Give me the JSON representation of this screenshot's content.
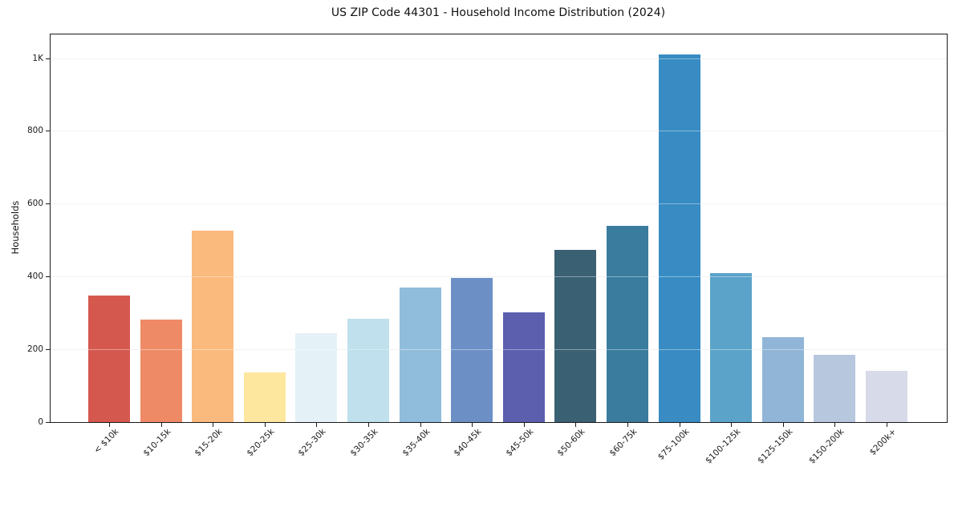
{
  "chart_data": {
    "type": "bar",
    "title": "US ZIP Code 44301 - Household Income Distribution (2024)",
    "xlabel": "",
    "ylabel": "Households",
    "categories": [
      "< $10k",
      "$10-15k",
      "$15-20k",
      "$20-25k",
      "$25-30k",
      "$30-35k",
      "$35-40k",
      "$40-45k",
      "$45-50k",
      "$50-60k",
      "$60-75k",
      "$75-100k",
      "$100-125k",
      "$125-150k",
      "$150-200k",
      "$200k+"
    ],
    "values": [
      347,
      281,
      525,
      137,
      245,
      285,
      370,
      397,
      302,
      473,
      540,
      1010,
      410,
      234,
      185,
      141
    ],
    "bar_colors": [
      "#d5584e",
      "#ef8a67",
      "#fbba7d",
      "#fde69e",
      "#e4f1f6",
      "#bfe0ec",
      "#90bddc",
      "#6c90c6",
      "#5b5fae",
      "#3a6073",
      "#3a7c9e",
      "#388cc3",
      "#5ba3c9",
      "#90b5d6",
      "#b6c7de",
      "#d7dae8"
    ],
    "ylim": [
      0,
      1065
    ],
    "yticks": [
      {
        "value": 0,
        "label": "0"
      },
      {
        "value": 200,
        "label": "200"
      },
      {
        "value": 400,
        "label": "400"
      },
      {
        "value": 600,
        "label": "600"
      },
      {
        "value": 800,
        "label": "800"
      },
      {
        "value": 1000,
        "label": "1K"
      }
    ],
    "grid": "horizontal",
    "legend": false,
    "background": "#ffffff",
    "frame_color": "#1a1a1a",
    "grid_color": "#e9e9e9"
  }
}
